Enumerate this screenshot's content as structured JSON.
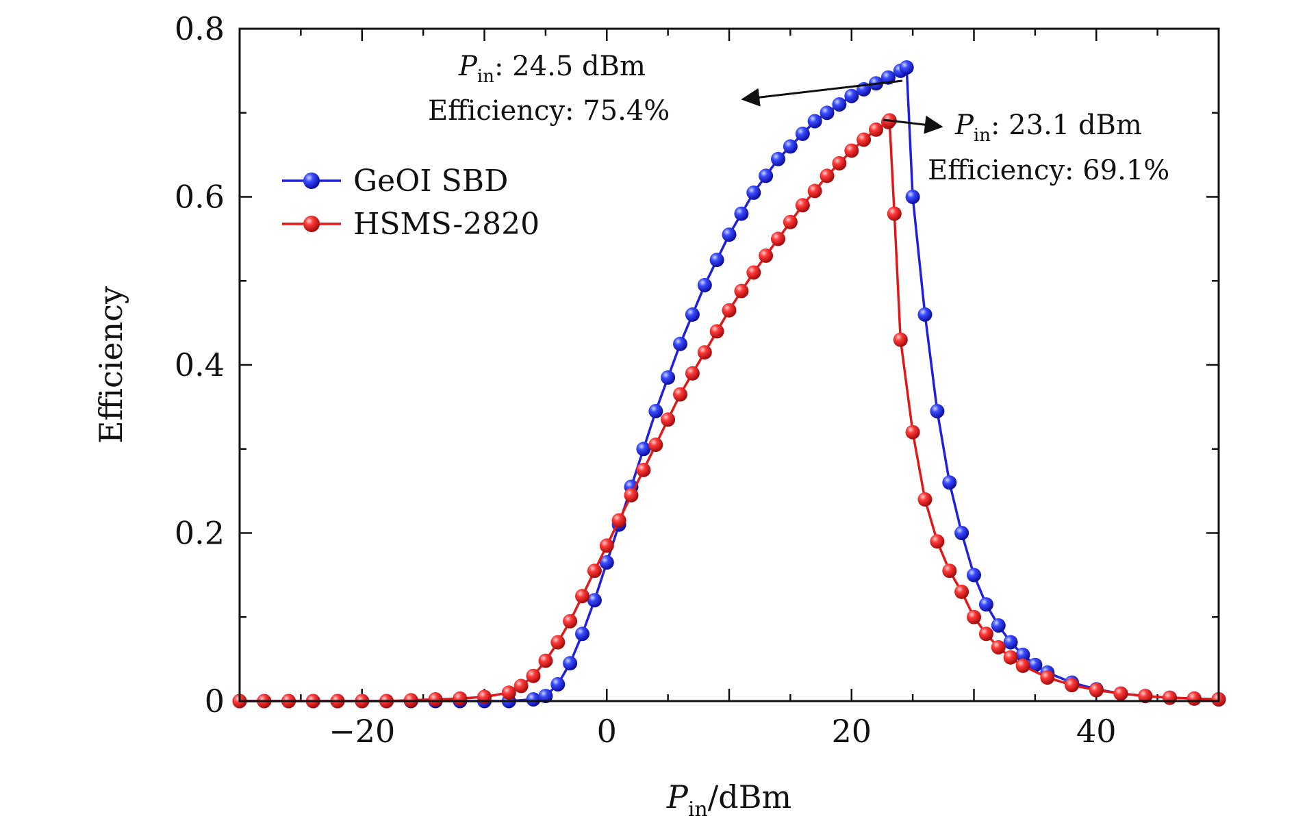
{
  "chart_data": {
    "type": "line",
    "xlabel": {
      "var": "P",
      "sub": "in",
      "unit": "/dBm"
    },
    "ylabel": "Efficiency",
    "xlim": [
      -30,
      50
    ],
    "ylim": [
      0,
      0.8
    ],
    "xticks": [
      -20,
      0,
      20,
      40
    ],
    "xtick_labels": [
      "−20",
      "0",
      "20",
      "40"
    ],
    "yticks": [
      0,
      0.2,
      0.4,
      0.6,
      0.8
    ],
    "ytick_labels": [
      "0",
      "0.2",
      "0.4",
      "0.6",
      "0.8"
    ],
    "legend_position": "upper-left",
    "series": [
      {
        "name": "GeOI SBD",
        "color": "#1f1fe0",
        "x": [
          -30,
          -28,
          -26,
          -24,
          -22,
          -20,
          -18,
          -16,
          -14,
          -12,
          -10,
          -8,
          -6,
          -5,
          -4,
          -3,
          -2,
          -1,
          0,
          1,
          2,
          3,
          4,
          5,
          6,
          7,
          8,
          9,
          10,
          11,
          12,
          13,
          14,
          15,
          16,
          17,
          18,
          19,
          20,
          21,
          22,
          23,
          24,
          24.5,
          25,
          26,
          27,
          28,
          29,
          30,
          31,
          32,
          33,
          34,
          35,
          36,
          38,
          40,
          42,
          44,
          46,
          48,
          50
        ],
        "y": [
          0,
          0,
          0,
          0,
          0,
          0,
          0,
          0,
          0,
          0,
          0,
          0,
          0.002,
          0.006,
          0.02,
          0.045,
          0.08,
          0.12,
          0.165,
          0.21,
          0.255,
          0.3,
          0.345,
          0.385,
          0.425,
          0.46,
          0.495,
          0.525,
          0.555,
          0.58,
          0.605,
          0.625,
          0.645,
          0.66,
          0.675,
          0.69,
          0.7,
          0.71,
          0.72,
          0.728,
          0.735,
          0.742,
          0.75,
          0.754,
          0.6,
          0.46,
          0.345,
          0.26,
          0.2,
          0.15,
          0.115,
          0.09,
          0.07,
          0.055,
          0.043,
          0.034,
          0.022,
          0.014,
          0.009,
          0.006,
          0.004,
          0.003,
          0.002
        ]
      },
      {
        "name": "HSMS-2820",
        "color": "#e01818",
        "x": [
          -30,
          -28,
          -26,
          -24,
          -22,
          -20,
          -18,
          -16,
          -14,
          -12,
          -10,
          -8,
          -7,
          -6,
          -5,
          -4,
          -3,
          -2,
          -1,
          0,
          1,
          2,
          3,
          4,
          5,
          6,
          7,
          8,
          9,
          10,
          11,
          12,
          13,
          14,
          15,
          16,
          17,
          18,
          19,
          20,
          21,
          22,
          23,
          23.1,
          23.5,
          24,
          25,
          26,
          27,
          28,
          29,
          30,
          31,
          32,
          33,
          34,
          36,
          38,
          40,
          42,
          44,
          46,
          48,
          50
        ],
        "y": [
          0,
          0,
          0,
          0,
          0,
          0,
          0,
          0.001,
          0.002,
          0.003,
          0.005,
          0.01,
          0.018,
          0.03,
          0.048,
          0.07,
          0.095,
          0.125,
          0.155,
          0.185,
          0.215,
          0.245,
          0.275,
          0.305,
          0.335,
          0.365,
          0.39,
          0.415,
          0.44,
          0.465,
          0.488,
          0.51,
          0.53,
          0.55,
          0.57,
          0.59,
          0.607,
          0.625,
          0.64,
          0.655,
          0.668,
          0.68,
          0.689,
          0.691,
          0.58,
          0.43,
          0.32,
          0.24,
          0.19,
          0.155,
          0.13,
          0.1,
          0.08,
          0.064,
          0.052,
          0.042,
          0.028,
          0.019,
          0.013,
          0.009,
          0.006,
          0.004,
          0.003,
          0.002
        ]
      }
    ],
    "annotations": [
      {
        "var": "P",
        "sub": "in",
        "pin_text": ": 24.5 dBm",
        "eff_text": "Efficiency: 75.4%",
        "point": [
          24.5,
          0.754
        ]
      },
      {
        "var": "P",
        "sub": "in",
        "pin_text": ": 23.1 dBm",
        "eff_text": "Efficiency: 69.1%",
        "point": [
          23.1,
          0.691
        ]
      }
    ]
  }
}
